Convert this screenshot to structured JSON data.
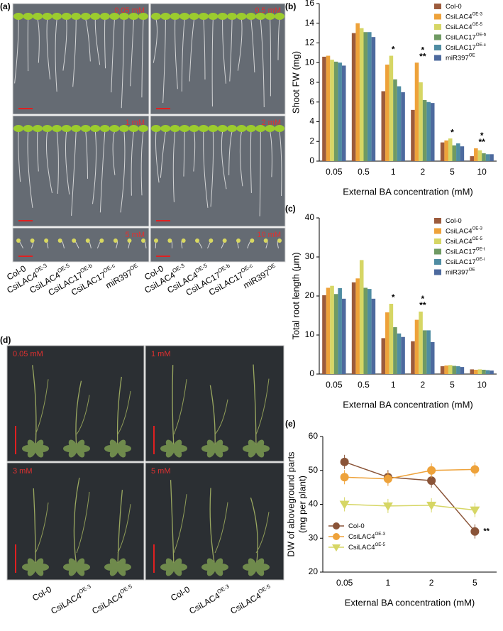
{
  "panel_labels": [
    "(a)",
    "(b)",
    "(c)",
    "(d)",
    "(e)"
  ],
  "photo_a": {
    "concentrations": [
      "0.05 mM",
      "0.5 mM",
      "1 mM",
      "2 mM",
      "5 mM",
      "10 mM"
    ],
    "genotypes": [
      {
        "name": "Col-0"
      },
      {
        "name": "CsiLAC4",
        "sup": "OE-3"
      },
      {
        "name": "CsiLAC4",
        "sup": "OE-5"
      },
      {
        "name": "CsiLAC17",
        "sup": "OE-b"
      },
      {
        "name": "CsiLAC17",
        "sup": "OE-c"
      },
      {
        "name": "miR397",
        "sup": "OE"
      }
    ]
  },
  "photo_d": {
    "concentrations": [
      "0.05 mM",
      "1 mM",
      "3 mM",
      "5 mM"
    ],
    "genotypes": [
      {
        "name": "Col-0"
      },
      {
        "name": "CsiLAC4",
        "sup": "OE-3"
      },
      {
        "name": "CsiLAC4",
        "sup": "OE-5"
      }
    ]
  },
  "chart_data": [
    {
      "type": "bar",
      "xlabel": "External BA concentration (mM)",
      "ylabel": "Shoot FW (mg)",
      "categories": [
        "0.05",
        "0.5",
        "1",
        "2",
        "5",
        "10"
      ],
      "ylim": [
        0,
        16
      ],
      "yticks": [
        0,
        2,
        4,
        6,
        8,
        10,
        12,
        14,
        16
      ],
      "legend": "top-right",
      "series": [
        {
          "name": "Col-0",
          "color": "#9c5b3c",
          "values": [
            10.6,
            13.0,
            7.1,
            5.2,
            1.9,
            0.5
          ]
        },
        {
          "name": "CsiLAC4",
          "sup": "OE-3",
          "color": "#eea23a",
          "values": [
            10.7,
            14.0,
            9.8,
            10.0,
            2.1,
            1.3
          ]
        },
        {
          "name": "CsiLAC4",
          "sup": "OE-5",
          "color": "#d6d665",
          "values": [
            10.3,
            13.5,
            10.7,
            8.0,
            2.3,
            1.1
          ]
        },
        {
          "name": "CsiLAC17",
          "sup": "OE-b",
          "color": "#6f9a63",
          "values": [
            10.1,
            13.1,
            8.3,
            6.2,
            1.6,
            0.8
          ]
        },
        {
          "name": "CsiLAC17",
          "sup": "OE-c",
          "color": "#4f8ca2",
          "values": [
            10.0,
            13.1,
            7.6,
            6.0,
            1.8,
            0.7
          ]
        },
        {
          "name": "miR397",
          "sup": "OE",
          "color": "#4d6a9e",
          "values": [
            9.7,
            12.6,
            7.0,
            5.9,
            1.5,
            0.7
          ]
        }
      ],
      "annotations": [
        {
          "text": "*",
          "category": "1"
        },
        {
          "text": "**",
          "category": "2"
        },
        {
          "text": "*",
          "category": "2"
        },
        {
          "text": "*",
          "category": "5"
        },
        {
          "text": "**",
          "category": "10"
        },
        {
          "text": "*",
          "category": "10"
        }
      ]
    },
    {
      "type": "bar",
      "xlabel": "External BA concentration (mM)",
      "ylabel": "Total root length (μm)",
      "categories": [
        "0.05",
        "0.5",
        "1",
        "2",
        "5",
        "10"
      ],
      "ylim": [
        0,
        40
      ],
      "yticks": [
        0,
        10,
        20,
        30,
        40
      ],
      "legend": "top-right",
      "series": [
        {
          "name": "Col-0",
          "color": "#9c5b3c",
          "values": [
            20.2,
            23.5,
            9.2,
            8.4,
            2.0,
            1.2
          ]
        },
        {
          "name": "CsiLAC4",
          "sup": "OE-3",
          "color": "#eea23a",
          "values": [
            22.1,
            24.5,
            15.8,
            13.9,
            2.2,
            1.1
          ]
        },
        {
          "name": "CsiLAC4",
          "sup": "OE-5",
          "color": "#d6d665",
          "values": [
            22.6,
            29.2,
            18.0,
            16.0,
            2.3,
            1.2
          ]
        },
        {
          "name": "CsiLAC17",
          "sup": "OE-t",
          "color": "#6f9a63",
          "values": [
            20.5,
            22.1,
            12.0,
            11.2,
            2.1,
            1.1
          ]
        },
        {
          "name": "CsiLAC17",
          "sup": "OE-i",
          "color": "#4f8ca2",
          "values": [
            22.0,
            21.8,
            10.4,
            11.2,
            2.0,
            1.0
          ]
        },
        {
          "name": "miR397",
          "sup": "OE",
          "color": "#4d6a9e",
          "values": [
            19.3,
            19.3,
            9.5,
            8.2,
            1.8,
            0.9
          ]
        }
      ],
      "annotations": [
        {
          "text": "*",
          "category": "1"
        },
        {
          "text": "**",
          "category": "2"
        },
        {
          "text": "*",
          "category": "2"
        }
      ]
    },
    {
      "type": "line",
      "xlabel": "External BA concentration (mM)",
      "ylabel": "DW of aboveground parts",
      "ylabel2": "(mg per plant)",
      "categories": [
        "0.05",
        "1",
        "2",
        "5"
      ],
      "ylim": [
        20,
        60
      ],
      "yticks": [
        20,
        30,
        40,
        50,
        60
      ],
      "legend": "bottom-left",
      "series": [
        {
          "name": "Col-0",
          "color": "#8a5438",
          "marker": "circle",
          "values": [
            52.5,
            48,
            47,
            32
          ]
        },
        {
          "name": "CsiLAC4",
          "sup": "OE-3",
          "color": "#eea23a",
          "marker": "circle",
          "values": [
            48,
            47.5,
            50,
            50.3
          ]
        },
        {
          "name": "CsiLAC4",
          "sup": "OE-5",
          "color": "#d6d665",
          "marker": "triangle-down",
          "values": [
            40,
            39.5,
            39.7,
            38.3
          ]
        }
      ],
      "annotations": [
        {
          "text": "**",
          "category": "5"
        }
      ]
    }
  ]
}
